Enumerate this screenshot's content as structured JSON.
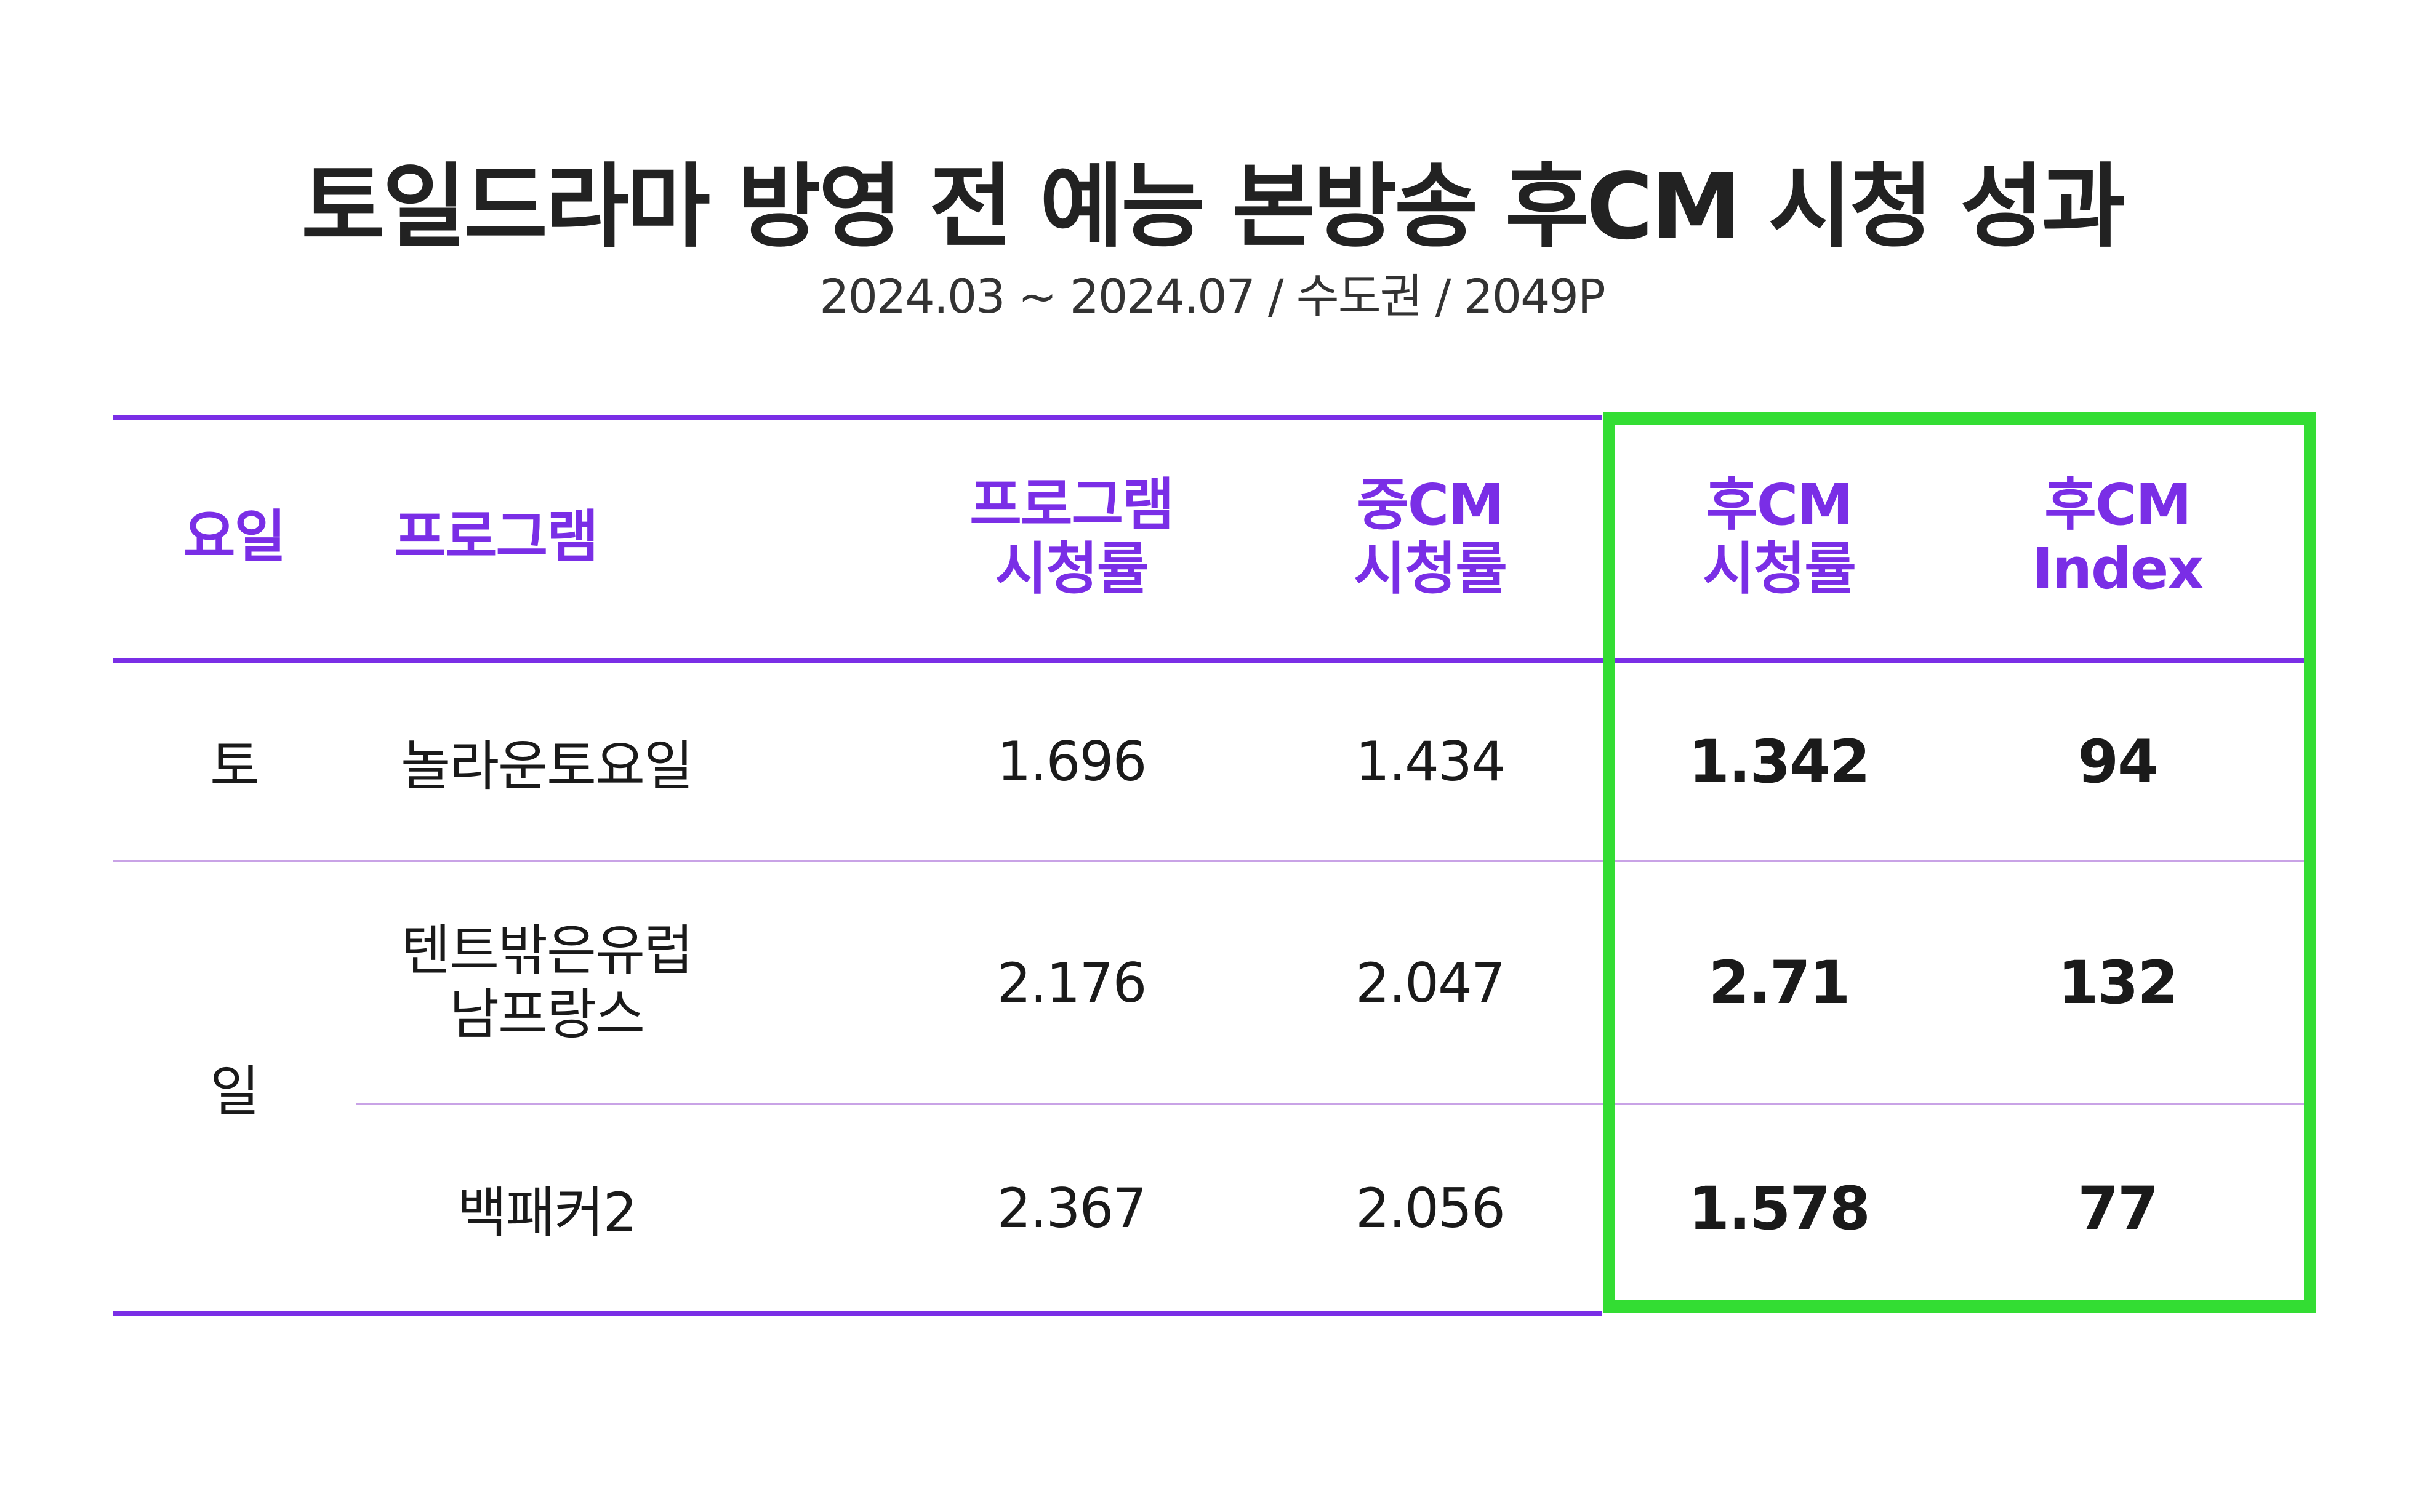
{
  "title": "토일드라마 방영 전 예능 본방송 후CM 시청 성과",
  "subtitle": "2024.03 ~ 2024.07 / 수도권 / 2049P",
  "colors": {
    "header_text": "#7a2ee6",
    "rule": "#7a2ee6",
    "row_divider": "#c9a3e6",
    "highlight_box": "#33dd33"
  },
  "chart_data": {
    "type": "table",
    "columns": [
      "요일",
      "프로그램",
      "프로그램\n시청률",
      "중CM\n시청률",
      "후CM\n시청률",
      "후CM\nIndex"
    ],
    "rows": [
      {
        "day": "토",
        "program": "놀라운토요일",
        "program_rating": "1.696",
        "mid_cm_rating": "1.434",
        "post_cm_rating": "1.342",
        "post_cm_index": "94"
      },
      {
        "day": "일",
        "program": "텐트밖은유럽\n남프랑스",
        "program_rating": "2.176",
        "mid_cm_rating": "2.047",
        "post_cm_rating": "2.71",
        "post_cm_index": "132"
      },
      {
        "day": "일",
        "program": "백패커2",
        "program_rating": "2.367",
        "mid_cm_rating": "2.056",
        "post_cm_rating": "1.578",
        "post_cm_index": "77"
      }
    ],
    "highlighted_columns": [
      "후CM\n시청률",
      "후CM\nIndex"
    ]
  }
}
